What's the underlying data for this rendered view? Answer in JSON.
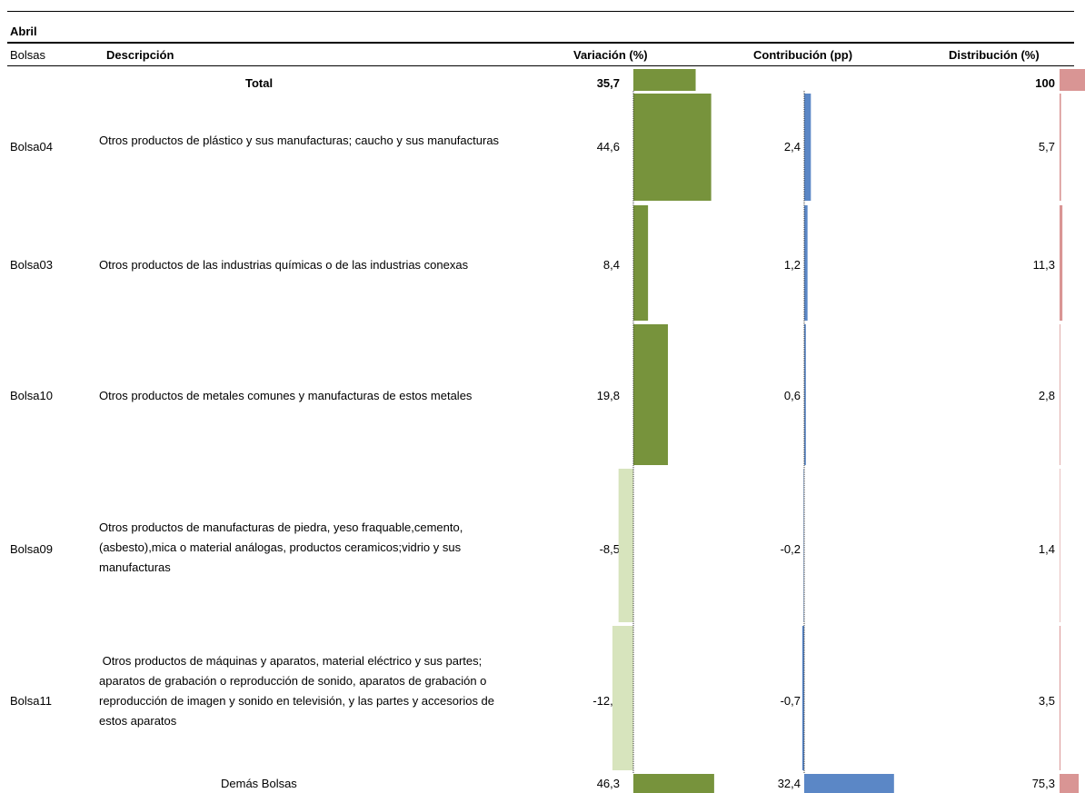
{
  "header": {
    "period": "Abril",
    "col_bolsas": "Bolsas",
    "col_desc": "Descripción",
    "col_var": "Variación (%)",
    "col_contrib": "Contribución (pp)",
    "col_dist": "Distribución (%)"
  },
  "total": {
    "label": "Total",
    "variacion": "35,7",
    "distribucion": "100"
  },
  "rows": [
    {
      "bolsa": "Bolsa04",
      "descripcion": "Otros productos de plástico y sus manufacturas; caucho y sus manufacturas",
      "variacion": "44,6",
      "contribucion": "2,4",
      "distribucion": "5,7"
    },
    {
      "bolsa": "Bolsa03",
      "descripcion": "Otros productos de las industrias químicas o de las industrias conexas",
      "variacion": "8,4",
      "contribucion": "1,2",
      "distribucion": "11,3"
    },
    {
      "bolsa": "Bolsa10",
      "descripcion": "Otros productos de metales comunes y manufacturas de estos metales",
      "variacion": "19,8",
      "contribucion": "0,6",
      "distribucion": "2,8"
    },
    {
      "bolsa": "Bolsa09",
      "descripcion": "Otros productos de manufacturas de piedra, yeso fraquable,cemento, (asbesto),mica o material análogas, productos ceramicos;vidrio y sus manufacturas",
      "variacion": "-8,5",
      "contribucion": "-0,2",
      "distribucion": "1,4"
    },
    {
      "bolsa": "Bolsa11",
      "descripcion": " Otros productos de máquinas y aparatos, material eléctrico y sus partes; aparatos de grabación o reproducción de sonido, aparatos de grabación o reproducción de imagen y sonido en televisión, y las partes y accesorios de estos aparatos",
      "variacion": "-12,0",
      "contribucion": "-0,7",
      "distribucion": "3,5"
    }
  ],
  "demas": {
    "label": "Demás Bolsas",
    "variacion": "46,3",
    "contribucion": "32,4",
    "distribucion": "75,3"
  },
  "colors": {
    "var_pos": "#77933c",
    "var_neg": "#d7e4bd",
    "contrib": "#5b87c6",
    "dist": "#d99594"
  },
  "chart_data": {
    "type": "bar",
    "title": "Abril",
    "categories": [
      "Total",
      "Bolsa04",
      "Bolsa03",
      "Bolsa10",
      "Bolsa09",
      "Bolsa11",
      "Demás Bolsas"
    ],
    "series": [
      {
        "name": "Variación (%)",
        "values": [
          35.7,
          44.6,
          8.4,
          19.8,
          -8.5,
          -12.0,
          46.3
        ]
      },
      {
        "name": "Contribución (pp)",
        "values": [
          null,
          2.4,
          1.2,
          0.6,
          -0.2,
          -0.7,
          32.4
        ]
      },
      {
        "name": "Distribución (%)",
        "values": [
          100,
          5.7,
          11.3,
          2.8,
          1.4,
          3.5,
          75.3
        ]
      }
    ]
  }
}
